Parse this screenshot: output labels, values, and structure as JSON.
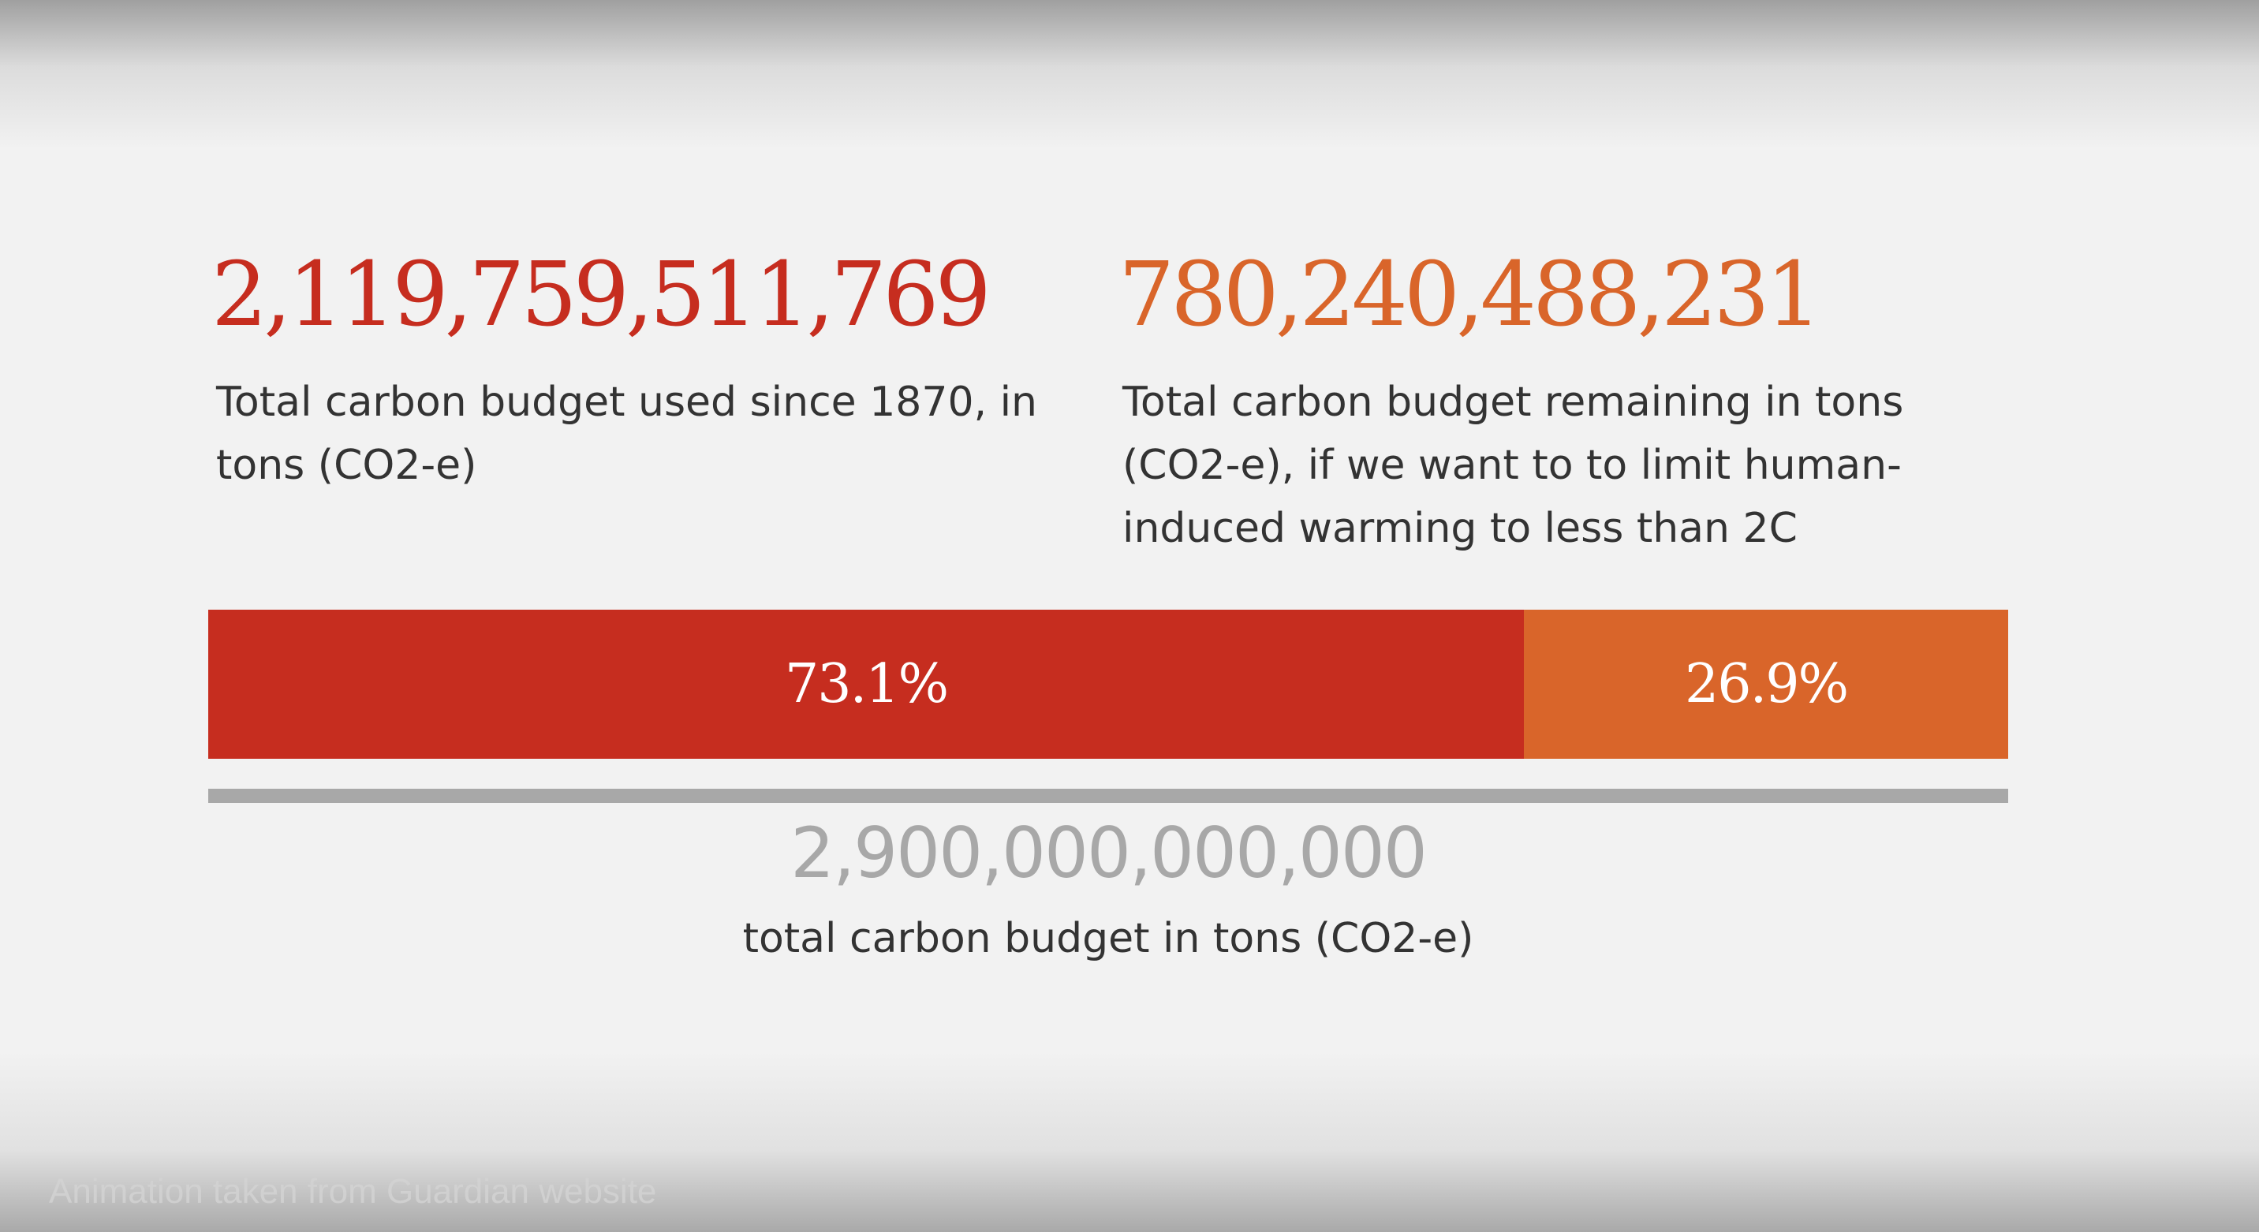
{
  "colors": {
    "used": "#c62d1f",
    "remaining": "#d9652a",
    "total": "#a8a8a8",
    "background": "#f2f2f2"
  },
  "used": {
    "number": "2,119,759,511,769",
    "caption": "Total carbon budget used since 1870, in tons (CO2-e)"
  },
  "remaining": {
    "number": "780,240,488,231",
    "caption": "Total carbon budget remaining in tons (CO2-e), if we want to to limit human-induced warming to less than 2C"
  },
  "bar": {
    "used_percent": 73.1,
    "used_label": "73.1%",
    "remaining_percent": 26.9,
    "remaining_label": "26.9%"
  },
  "total": {
    "number": "2,900,000,000,000",
    "caption": "total carbon budget in tons (CO2-e)"
  },
  "credit": "Animation taken from Guardian website"
}
